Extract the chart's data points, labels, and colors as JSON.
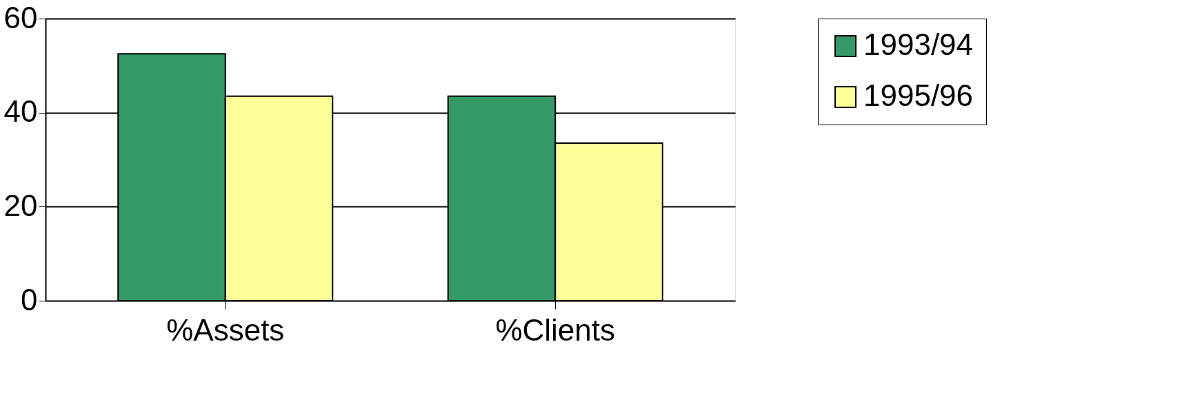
{
  "chart_data": {
    "type": "bar",
    "categories": [
      "%Assets",
      "%Clients"
    ],
    "series": [
      {
        "name": "1993/94",
        "color": "#339966",
        "values": [
          52.5,
          43.5
        ]
      },
      {
        "name": "1995/96",
        "color": "#ffff99",
        "values": [
          43.5,
          33.5
        ]
      }
    ],
    "ylim": [
      0,
      60
    ],
    "yticks": [
      0,
      20,
      40,
      60
    ],
    "grid": "y",
    "legend": "right"
  }
}
